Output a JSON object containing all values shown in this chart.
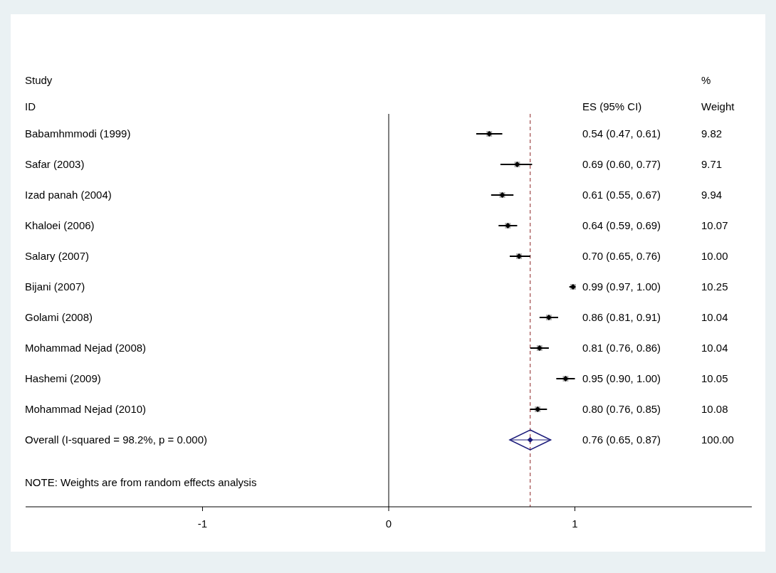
{
  "chart_data": {
    "type": "scatter",
    "orientation": "horizontal",
    "categories": [
      "Babamhmmodi (1999)",
      "Safar (2003)",
      "Izad panah (2004)",
      "Khaloei (2006)",
      "Salary (2007)",
      "Bijani (2007)",
      "Golami (2008)",
      "Mohammad Nejad (2008)",
      "Hashemi (2009)",
      "Mohammad Nejad (2010)",
      "Overall  (I-squared = 98.2%, p = 0.000)"
    ],
    "series": [
      {
        "type": "scatter",
        "marker": "diamond",
        "color": "#000000",
        "values": [
          0.54,
          0.69,
          0.61,
          0.64,
          0.7,
          0.99,
          0.86,
          0.81,
          0.95,
          0.8,
          null
        ],
        "errors": [
          [
            0.47,
            0.61
          ],
          [
            0.6,
            0.77
          ],
          [
            0.55,
            0.67
          ],
          [
            0.59,
            0.69
          ],
          [
            0.65,
            0.76
          ],
          [
            0.97,
            1.0
          ],
          [
            0.81,
            0.91
          ],
          [
            0.76,
            0.86
          ],
          [
            0.9,
            1.0
          ],
          [
            0.76,
            0.85
          ],
          null
        ]
      },
      {
        "type": "scatter",
        "marker": "diamond",
        "color": "#1a1a7a",
        "values": [
          null,
          null,
          null,
          null,
          null,
          null,
          null,
          null,
          null,
          null,
          0.76
        ],
        "errors": [
          null,
          null,
          null,
          null,
          null,
          null,
          null,
          null,
          null,
          null,
          [
            0.65,
            0.87
          ]
        ]
      }
    ],
    "xlim": [
      -1.95,
      1.95
    ],
    "xticks": [
      -1,
      0,
      1
    ],
    "ref_lines": [
      {
        "axis": "x",
        "value": 0,
        "color": "#000000",
        "line_style": "solid"
      },
      {
        "axis": "x",
        "value": 0.76,
        "color": "#8b2323",
        "line_style": "dashed"
      }
    ],
    "annotations": [
      "Study",
      "ID",
      "ES (95% CI)",
      "%",
      "Weight",
      "NOTE: Weights are from random effects analysis",
      "0.54 (0.47, 0.61)",
      "9.82",
      "0.69 (0.60, 0.77)",
      "9.71",
      "0.61 (0.55, 0.67)",
      "9.94",
      "0.64 (0.59, 0.69)",
      "10.07",
      "0.70 (0.65, 0.76)",
      "10.00",
      "0.99 (0.97, 1.00)",
      "10.25",
      "0.86 (0.81, 0.91)",
      "10.04",
      "0.81 (0.76, 0.86)",
      "10.04",
      "0.95 (0.90, 1.00)",
      "10.05",
      "0.80 (0.76, 0.85)",
      "10.08",
      "0.76 (0.65, 0.87)",
      "100.00"
    ]
  }
}
